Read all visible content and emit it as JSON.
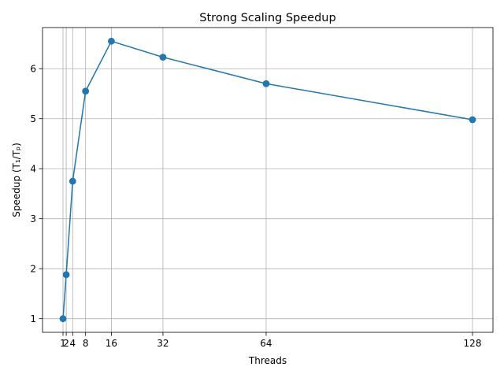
{
  "chart_data": {
    "type": "line",
    "title": "Strong Scaling Speedup",
    "xlabel": "Threads",
    "ylabel": "Speedup (T₁/Tₚ)",
    "x": [
      1,
      2,
      4,
      8,
      16,
      32,
      64,
      128
    ],
    "series": [
      {
        "values": [
          1.0,
          1.88,
          3.75,
          5.55,
          6.55,
          6.23,
          5.7,
          4.98
        ],
        "color": "#1f77b4",
        "marker": "circle"
      }
    ],
    "xticks": [
      1,
      2,
      4,
      8,
      16,
      32,
      64,
      128
    ],
    "xtick_labels": [
      "1",
      "2",
      "4",
      "8",
      "16",
      "32",
      "64",
      "128"
    ],
    "yticks": [
      1,
      2,
      3,
      4,
      5,
      6
    ],
    "ytick_labels": [
      "1",
      "2",
      "3",
      "4",
      "5",
      "6"
    ],
    "xlim": [
      -5.35,
      134.35
    ],
    "ylim": [
      0.7275,
      6.8225
    ],
    "grid": true,
    "legend": "none"
  }
}
